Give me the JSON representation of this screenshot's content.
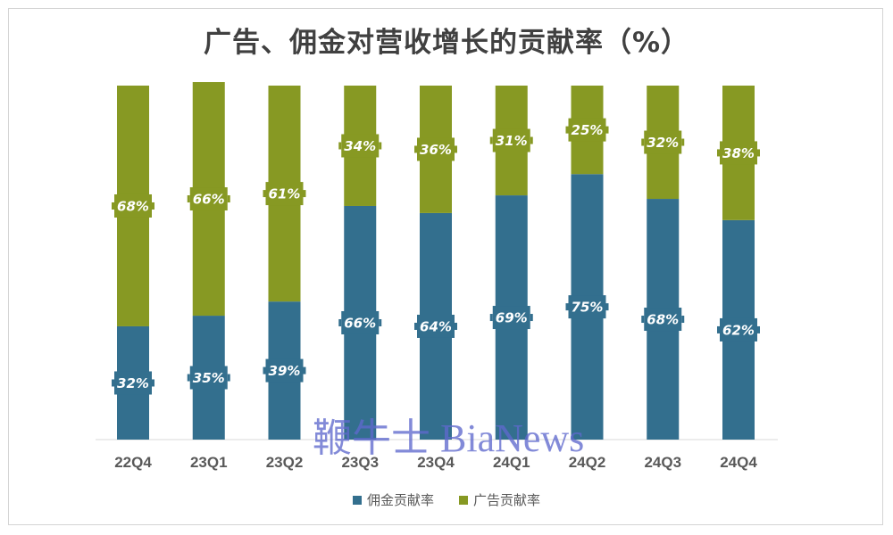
{
  "watermark": "鞭牛士 BiaNews",
  "colors": {
    "commission": "#336F8E",
    "advertising": "#879923"
  },
  "chart_data": {
    "type": "bar",
    "stacked": true,
    "title": "广告、佣金对营收增长的贡献率（%）",
    "categories": [
      "22Q4",
      "23Q1",
      "23Q2",
      "23Q3",
      "23Q4",
      "24Q1",
      "24Q2",
      "24Q3",
      "24Q4"
    ],
    "series": [
      {
        "name": "佣金贡献率",
        "values": [
          32,
          35,
          39,
          66,
          64,
          69,
          75,
          68,
          62
        ],
        "color": "#336F8E"
      },
      {
        "name": "广告贡献率",
        "values": [
          68,
          66,
          61,
          34,
          36,
          31,
          25,
          32,
          38
        ],
        "color": "#879923"
      }
    ],
    "label_suffix": "%",
    "ylim": [
      0,
      100
    ],
    "grid": false,
    "legend_position": "bottom"
  }
}
